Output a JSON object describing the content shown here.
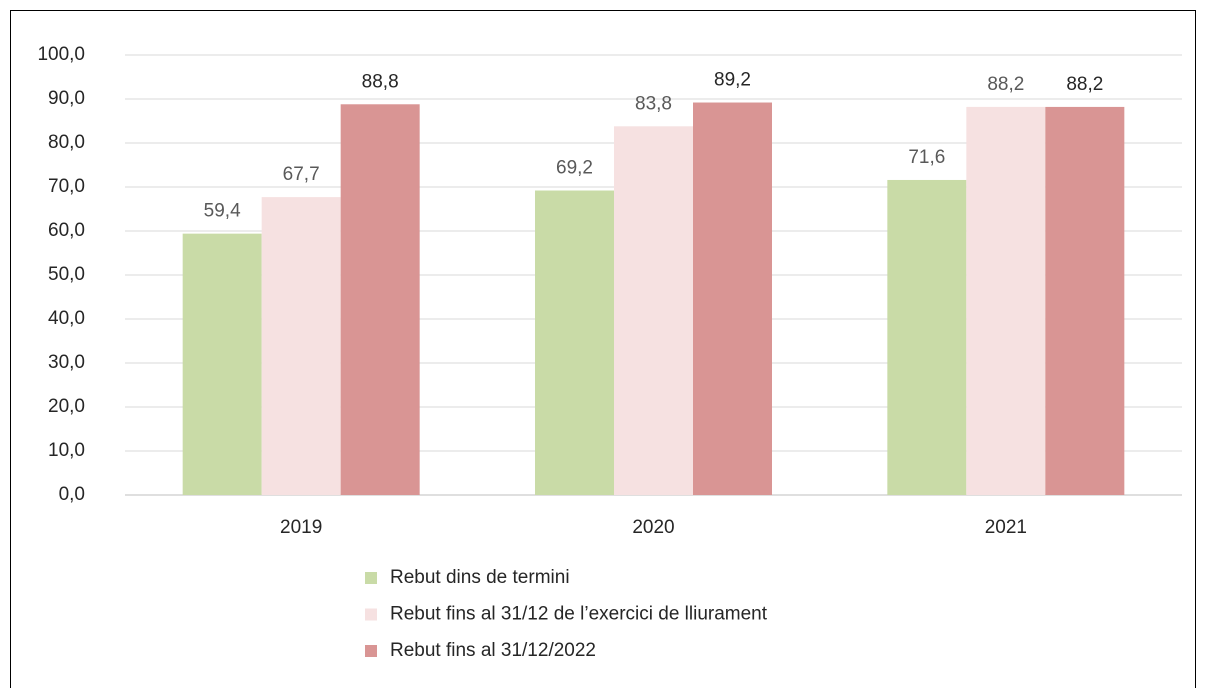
{
  "chart_data": {
    "type": "bar",
    "categories": [
      "2019",
      "2020",
      "2021"
    ],
    "series": [
      {
        "name": "Rebut dins de termini",
        "color": "#c9dba7",
        "values": [
          59.4,
          69.2,
          71.6
        ],
        "value_labels": [
          "59,4",
          "69,2",
          "71,6"
        ]
      },
      {
        "name": "Rebut fins al 31/12 de l’exercici de lliurament",
        "color": "#f6e1e1",
        "values": [
          67.7,
          83.8,
          88.2
        ],
        "value_labels": [
          "67,7",
          "83,8",
          "88,2"
        ]
      },
      {
        "name": "Rebut fins al 31/12/2022",
        "color": "#d99594",
        "values": [
          88.8,
          89.2,
          88.2
        ],
        "value_labels": [
          "88,8",
          "89,2",
          "88,2"
        ]
      }
    ],
    "ylim": [
      0,
      100
    ],
    "yticks": [
      {
        "value": 0,
        "label": "0,0"
      },
      {
        "value": 10,
        "label": "10,0"
      },
      {
        "value": 20,
        "label": "20,0"
      },
      {
        "value": 30,
        "label": "30,0"
      },
      {
        "value": 40,
        "label": "40,0"
      },
      {
        "value": 50,
        "label": "50,0"
      },
      {
        "value": 60,
        "label": "60,0"
      },
      {
        "value": 70,
        "label": "70,0"
      },
      {
        "value": 80,
        "label": "80,0"
      },
      {
        "value": 90,
        "label": "90,0"
      },
      {
        "value": 100,
        "label": "100,0"
      }
    ],
    "grid": true,
    "legend": "bottom"
  }
}
